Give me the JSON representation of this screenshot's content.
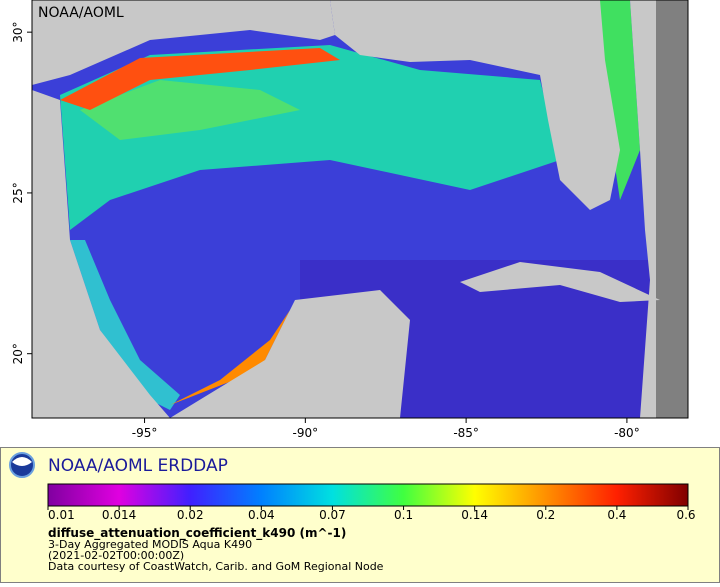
{
  "map": {
    "source_label": "NOAA/AOML",
    "xlim": [
      -98.5,
      -78.1
    ],
    "ylim": [
      18,
      31
    ],
    "xticks": [
      {
        "value": -95,
        "label": "-95°"
      },
      {
        "value": -90,
        "label": "-90°"
      },
      {
        "value": -85,
        "label": "-85°"
      },
      {
        "value": -80,
        "label": "-80°"
      }
    ],
    "yticks": [
      {
        "value": 20,
        "label": "20°"
      },
      {
        "value": 25,
        "label": "25°"
      },
      {
        "value": 30,
        "label": "30°"
      }
    ]
  },
  "legend": {
    "title": "NOAA/AOML ERDDAP",
    "colorbar": {
      "ticks": [
        0.01,
        0.014,
        0.02,
        0.04,
        0.07,
        0.1,
        0.14,
        0.2,
        0.4,
        0.6
      ],
      "colors": [
        "#8000a0",
        "#e000e0",
        "#4020ff",
        "#0080ff",
        "#00e0e0",
        "#40ff40",
        "#ffff00",
        "#ff9000",
        "#ff2000",
        "#800000"
      ]
    },
    "variable": "diffuse_attenuation_coefficient_k490 (m^-1)",
    "dataset": "3-Day Aggregated MODIS Aqua K490",
    "time": "(2021-02-02T00:00:00Z)",
    "credit": "Data courtesy of CoastWatch, Carib. and GoM Regional Node"
  }
}
